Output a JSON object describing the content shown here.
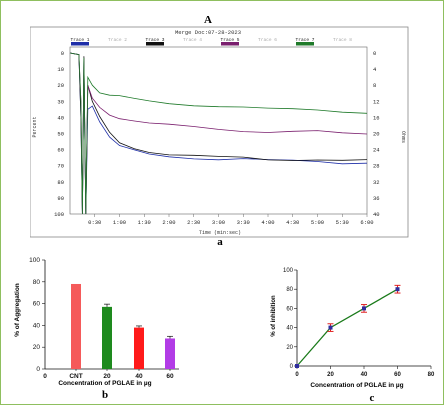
{
  "figure": {
    "panel_a_letter": "A",
    "panel_a_caption": "a",
    "panel_b_letter": "b",
    "panel_c_letter": "c"
  },
  "chart_data": [
    {
      "type": "line",
      "title": "Merge Doc:07-28-2023",
      "xlabel": "Time (min:sec)",
      "ylabel": "Percent",
      "y2label": "Ohms",
      "x_ticks": [
        "0:30",
        "1:00",
        "1:30",
        "2:00",
        "2:30",
        "3:00",
        "3:30",
        "4:00",
        "4:30",
        "5:00",
        "5:30",
        "6:00"
      ],
      "xlim": [
        0,
        6
      ],
      "y_ticks": [
        0,
        10,
        20,
        30,
        40,
        50,
        60,
        70,
        80,
        90,
        100
      ],
      "y2_ticks": [
        0,
        4,
        8,
        12,
        16,
        20,
        24,
        28,
        32,
        36,
        40
      ],
      "ylim": [
        0,
        100
      ],
      "y_inverted": true,
      "legend_position": "top",
      "legend": [
        {
          "name": "Trace 1",
          "color": "#1f2fa8",
          "active": true
        },
        {
          "name": "Trace 2",
          "color": "#c9c9c9",
          "active": false
        },
        {
          "name": "Trace 3",
          "color": "#111111",
          "active": true
        },
        {
          "name": "Trace 4",
          "color": "#c9c9c9",
          "active": false
        },
        {
          "name": "Trace 5",
          "color": "#7a1f6e",
          "active": true
        },
        {
          "name": "Trace 6",
          "color": "#c9c9c9",
          "active": false
        },
        {
          "name": "Trace 7",
          "color": "#1f7a2a",
          "active": true
        },
        {
          "name": "Trace 8",
          "color": "#c9c9c9",
          "active": false
        }
      ],
      "series": [
        {
          "name": "Trace 1",
          "color": "#1f2fa8",
          "x": [
            0,
            0.18,
            0.22,
            0.25,
            0.28,
            0.32,
            0.36,
            0.45,
            0.6,
            0.8,
            1.0,
            1.3,
            1.6,
            2.0,
            2.5,
            3.0,
            3.5,
            4.0,
            4.5,
            5.0,
            5.5,
            6.0
          ],
          "y": [
            0,
            1,
            40,
            100,
            5,
            100,
            35,
            33,
            42,
            52,
            58,
            61,
            63,
            64,
            65,
            66,
            66,
            67,
            67,
            67,
            68,
            68
          ]
        },
        {
          "name": "Trace 3",
          "color": "#111111",
          "x": [
            0,
            0.18,
            0.22,
            0.25,
            0.28,
            0.32,
            0.36,
            0.45,
            0.6,
            0.8,
            1.0,
            1.3,
            1.6,
            2.0,
            2.5,
            3.0,
            3.5,
            4.0,
            4.5,
            5.0,
            5.5,
            6.0
          ],
          "y": [
            0,
            1,
            40,
            100,
            2,
            100,
            20,
            30,
            40,
            50,
            56,
            59,
            61,
            63,
            64,
            65,
            65,
            66,
            66,
            66,
            67,
            67
          ]
        },
        {
          "name": "Trace 5",
          "color": "#7a1f6e",
          "x": [
            0,
            0.18,
            0.22,
            0.25,
            0.28,
            0.32,
            0.36,
            0.45,
            0.6,
            0.8,
            1.0,
            1.3,
            1.6,
            2.0,
            2.5,
            3.0,
            3.5,
            4.0,
            4.5,
            5.0,
            5.5,
            6.0
          ],
          "y": [
            0,
            1,
            30,
            100,
            3,
            100,
            20,
            28,
            34,
            38,
            40,
            42,
            44,
            45,
            46,
            47,
            48,
            49,
            49,
            49,
            50,
            50
          ]
        },
        {
          "name": "Trace 7",
          "color": "#1f7a2a",
          "x": [
            0,
            0.18,
            0.22,
            0.25,
            0.28,
            0.32,
            0.36,
            0.45,
            0.6,
            0.8,
            1.0,
            1.3,
            1.6,
            2.0,
            2.5,
            3.0,
            3.5,
            4.0,
            4.5,
            5.0,
            5.5,
            6.0
          ],
          "y": [
            0,
            1,
            30,
            100,
            3,
            100,
            15,
            20,
            24,
            26,
            27,
            29,
            30,
            31,
            32,
            33,
            34,
            35,
            35,
            35,
            36,
            37
          ]
        }
      ]
    },
    {
      "type": "bar",
      "title": "",
      "categories": [
        "CNT",
        "20",
        "40",
        "60"
      ],
      "values": [
        78,
        57,
        38,
        28
      ],
      "errors": [
        0,
        2.5,
        1.5,
        2
      ],
      "colors": [
        "#f55a5a",
        "#1e8a1e",
        "#ff1a1a",
        "#b23ce6"
      ],
      "xlabel": "Concentration of PGLAE in µg",
      "ylabel": "% of Aggregation",
      "ylim": [
        0,
        100
      ],
      "y_ticks": [
        0,
        20,
        40,
        60,
        80,
        100
      ],
      "x_zero_label": "0"
    },
    {
      "type": "line",
      "title": "",
      "x": [
        0,
        20,
        40,
        60
      ],
      "y": [
        0,
        40,
        60,
        80
      ],
      "errors": [
        0,
        4,
        4,
        4
      ],
      "line_color": "#1a7a1a",
      "marker_color": "#2e2e9e",
      "error_color": "#e02020",
      "xlabel": "Concentration of PGLAE in µg",
      "ylabel": "% of inhibition",
      "xlim": [
        0,
        80
      ],
      "ylim": [
        0,
        100
      ],
      "x_ticks": [
        0,
        20,
        40,
        60,
        80
      ],
      "y_ticks": [
        0,
        20,
        40,
        60,
        80,
        100
      ]
    }
  ]
}
